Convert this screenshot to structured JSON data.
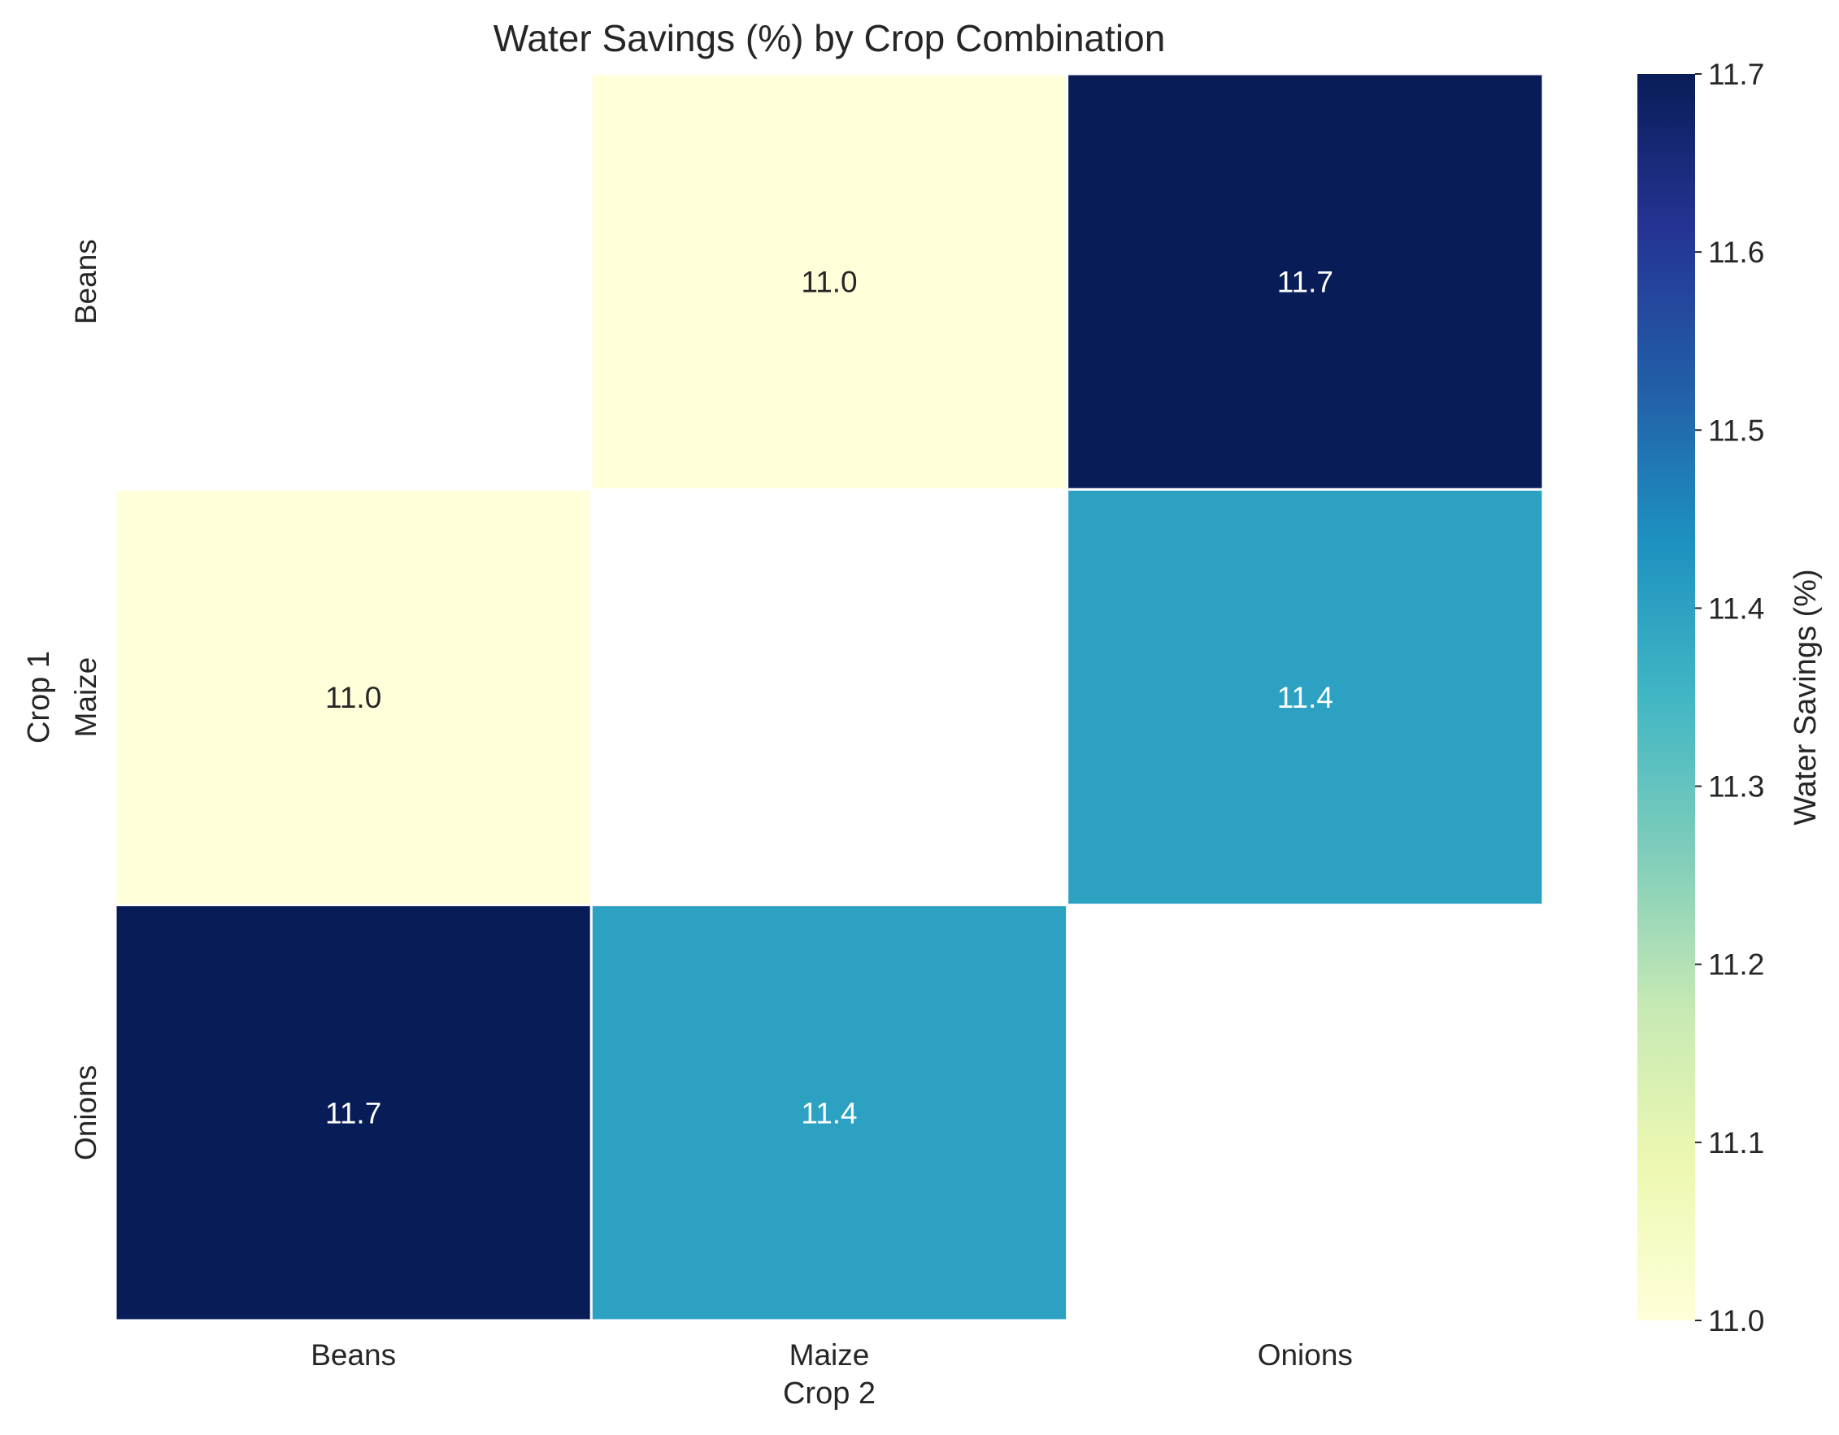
{
  "chart_data": {
    "type": "heatmap",
    "title": "Water Savings (%) by Crop Combination",
    "xlabel": "Crop 2",
    "ylabel": "Crop 1",
    "x_categories": [
      "Beans",
      "Maize",
      "Onions"
    ],
    "y_categories": [
      "Beans",
      "Maize",
      "Onions"
    ],
    "values": [
      [
        null,
        11.0,
        11.7
      ],
      [
        11.0,
        null,
        11.4
      ],
      [
        11.7,
        11.4,
        null
      ]
    ],
    "value_labels": [
      [
        null,
        "11.0",
        "11.7"
      ],
      [
        "11.0",
        null,
        "11.4"
      ],
      [
        "11.7",
        "11.4",
        null
      ]
    ],
    "colorbar": {
      "label": "Water Savings (%)",
      "range": [
        11.0,
        11.7
      ],
      "ticks": [
        "11.0",
        "11.1",
        "11.2",
        "11.3",
        "11.4",
        "11.5",
        "11.6",
        "11.7"
      ],
      "colormap": "YlGnBu",
      "colors": [
        "#ffffd9",
        "#edf8b1",
        "#c7e9b4",
        "#7fcdbb",
        "#41b6c4",
        "#1d91c0",
        "#225ea8",
        "#253494",
        "#081d58"
      ]
    },
    "grid": false,
    "legend": "colorbar-right"
  }
}
